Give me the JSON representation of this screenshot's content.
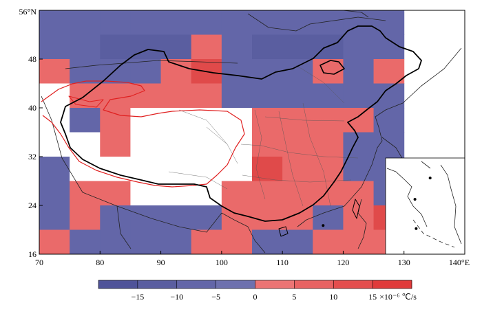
{
  "map": {
    "lat_labels": [
      "56°N",
      "48",
      "40",
      "32",
      "24",
      "16"
    ],
    "lon_labels": [
      "70",
      "80",
      "90",
      "100",
      "110",
      "120",
      "130",
      "140°E"
    ],
    "lat_values": [
      56,
      48,
      40,
      32,
      24,
      16
    ],
    "lon_values": [
      70,
      80,
      90,
      100,
      110,
      120,
      130,
      140
    ],
    "grid_lon_range": [
      70,
      130
    ],
    "grid_lat_range": [
      16,
      56
    ],
    "grid_step_deg": 5,
    "cell_colors": {
      "-2": "#5a5ea0",
      "-1": "#6366a8",
      "0": "#ffffff",
      "1": "#ea6a6a",
      "2": "#e04a4a"
    },
    "cells": [
      [
        -1,
        -1,
        -1,
        -1,
        -1,
        -1,
        -1,
        -1,
        -1,
        -1,
        -1,
        -1
      ],
      [
        -1,
        -1,
        -2,
        -2,
        -2,
        1,
        -1,
        -2,
        -2,
        -2,
        -1,
        -1
      ],
      [
        1,
        -1,
        -1,
        -1,
        1,
        2,
        -1,
        -1,
        -1,
        1,
        -1,
        1
      ],
      [
        0,
        1,
        1,
        1,
        1,
        1,
        -1,
        -1,
        -1,
        -1,
        -1,
        -1
      ],
      [
        0,
        -1,
        1,
        0,
        0,
        0,
        0,
        1,
        1,
        1,
        1,
        -1
      ],
      [
        0,
        0,
        1,
        0,
        0,
        0,
        0,
        1,
        1,
        1,
        -1,
        -1
      ],
      [
        -1,
        0,
        0,
        0,
        0,
        0,
        0,
        2,
        1,
        1,
        -1,
        -1
      ],
      [
        -1,
        1,
        1,
        0,
        0,
        0,
        1,
        1,
        1,
        1,
        1,
        -1
      ],
      [
        -1,
        1,
        -1,
        -1,
        -1,
        -1,
        1,
        1,
        1,
        -1,
        1,
        2
      ],
      [
        1,
        -1,
        -1,
        -1,
        -1,
        1,
        1,
        -1,
        -1,
        1,
        1,
        1
      ]
    ],
    "inset_dots": [
      {
        "lon": 134.3,
        "lat": 28.5
      },
      {
        "lon": 131.8,
        "lat": 25.0
      },
      {
        "lon": 132.0,
        "lat": 20.2
      },
      {
        "lon": 116.7,
        "lat": 20.7
      }
    ]
  },
  "colorbar": {
    "colors": [
      "#4f5399",
      "#5a5ea0",
      "#6366a8",
      "#6e71ae",
      "#ec7474",
      "#e86262",
      "#e44e4e",
      "#e03b3b"
    ],
    "tick_labels": [
      "−15",
      "−10",
      "−5",
      "0",
      "5",
      "10",
      "15"
    ],
    "tick_values": [
      -15,
      -10,
      -5,
      0,
      5,
      10,
      15
    ],
    "range": [
      -20,
      20
    ],
    "unit_label": "×10⁻⁶ ℃/s"
  }
}
